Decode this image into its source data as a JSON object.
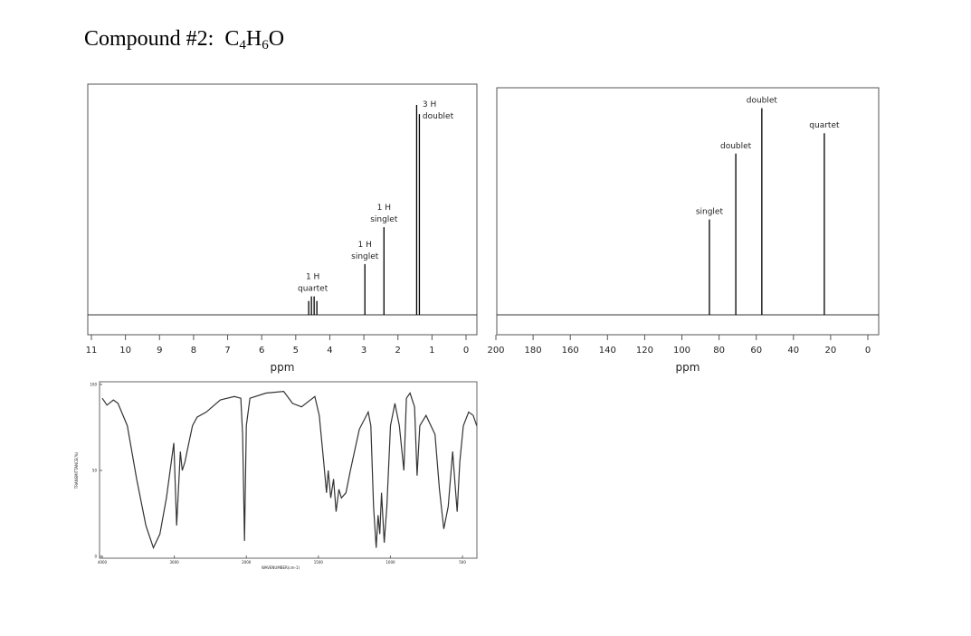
{
  "header": {
    "title": "Compound #2:",
    "formula": [
      "C",
      "4",
      "H",
      "6",
      "O"
    ]
  },
  "chart_data": [
    {
      "type": "stem",
      "xlabel": "ppm",
      "xlim": [
        11,
        0
      ],
      "xticks": [
        11,
        10,
        9,
        8,
        7,
        6,
        5,
        4,
        3,
        2,
        1,
        0
      ],
      "ylim": [
        0,
        100
      ],
      "color": "#000000",
      "peaks": [
        {
          "label": [
            "1 H",
            "quartet"
          ],
          "x": [
            4.62,
            4.54,
            4.46,
            4.38
          ],
          "y": [
            6,
            8,
            8,
            6
          ]
        },
        {
          "label": [
            "1 H",
            "singlet"
          ],
          "x": [
            2.97
          ],
          "y": [
            22
          ]
        },
        {
          "label": [
            "1 H",
            "singlet"
          ],
          "x": [
            2.41
          ],
          "y": [
            38
          ]
        },
        {
          "label": [
            "3 H",
            "doublet"
          ],
          "x": [
            1.45,
            1.37
          ],
          "y": [
            91,
            87
          ]
        }
      ]
    },
    {
      "type": "stem",
      "xlabel": "ppm",
      "xlim": [
        200,
        0
      ],
      "xticks": [
        200,
        180,
        160,
        140,
        120,
        100,
        80,
        60,
        40,
        20,
        0
      ],
      "ylim": [
        0,
        100
      ],
      "color": "#000000",
      "peaks": [
        {
          "label": [
            "singlet"
          ],
          "x": [
            85.2
          ],
          "y": [
            42
          ]
        },
        {
          "label": [
            "doublet"
          ],
          "x": [
            71
          ],
          "y": [
            71
          ]
        },
        {
          "label": [
            "doublet"
          ],
          "x": [
            57
          ],
          "y": [
            91
          ]
        },
        {
          "label": [
            "quartet"
          ],
          "x": [
            23.4
          ],
          "y": [
            80
          ]
        }
      ]
    },
    {
      "type": "line",
      "xlabel": "WAVENUMBER(cm-1)",
      "ylabel": "TRANSMITTANCE(%)",
      "xlim": [
        4000,
        400
      ],
      "x_scale_break": 2000,
      "xticks": [
        4000,
        3000,
        2000,
        1500,
        1000,
        500
      ],
      "ylim": [
        0,
        100
      ],
      "yticks": [
        0,
        50,
        100
      ],
      "color": "#333333",
      "x": [
        4000,
        3935,
        3845,
        3781,
        3652,
        3523,
        3394,
        3290,
        3200,
        3110,
        3006,
        2968,
        2916,
        2890,
        2852,
        2813,
        2748,
        2684,
        2555,
        2361,
        2168,
        2077,
        2052,
        2026,
        2000,
        1975,
        1864,
        1741,
        1679,
        1617,
        1525,
        1494,
        1463,
        1444,
        1432,
        1414,
        1395,
        1377,
        1358,
        1340,
        1309,
        1278,
        1216,
        1154,
        1136,
        1117,
        1099,
        1086,
        1074,
        1062,
        1043,
        1025,
        1000,
        969,
        938,
        907,
        889,
        864,
        833,
        815,
        796,
        753,
        691,
        660,
        630,
        599,
        568,
        549,
        537,
        519,
        494,
        457,
        426,
        401
      ],
      "values": [
        92,
        88,
        91,
        89,
        76,
        45,
        18,
        5,
        13,
        34,
        66,
        18,
        61,
        50,
        55,
        63,
        76,
        81,
        84,
        91,
        93,
        92,
        71,
        9,
        76,
        92,
        95,
        96,
        89,
        87,
        93,
        82,
        55,
        37,
        50,
        34,
        45,
        26,
        39,
        34,
        37,
        50,
        74,
        84,
        76,
        29,
        5,
        24,
        13,
        37,
        8,
        29,
        76,
        89,
        76,
        50,
        92,
        95,
        87,
        47,
        76,
        82,
        71,
        39,
        16,
        29,
        61,
        39,
        26,
        55,
        76,
        84,
        82,
        76
      ]
    }
  ]
}
